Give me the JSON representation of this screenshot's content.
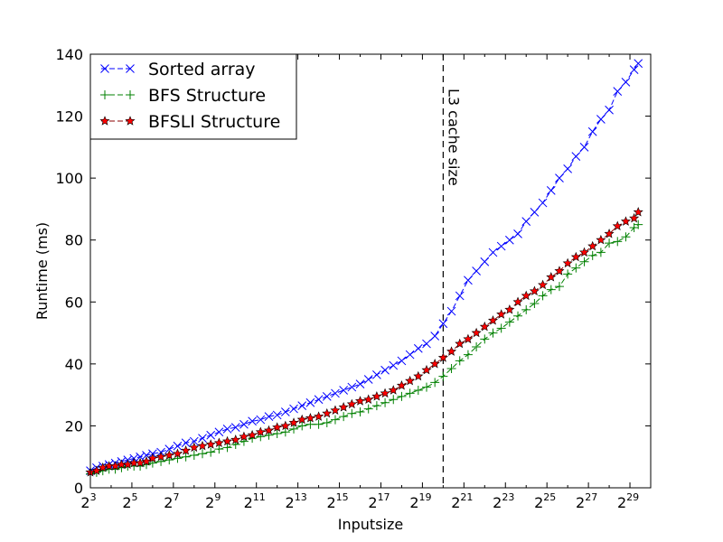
{
  "chart_data": {
    "type": "line",
    "xlabel": "Inputsize",
    "ylabel": "Runtime (ms)",
    "x_scale": "log2",
    "xlim": [
      3,
      30
    ],
    "ylim": [
      0,
      140
    ],
    "x_ticks": [
      3,
      5,
      7,
      9,
      11,
      13,
      15,
      17,
      19,
      21,
      23,
      25,
      27,
      29
    ],
    "x_tick_labels": [
      "2^3",
      "2^5",
      "2^7",
      "2^9",
      "2^11",
      "2^13",
      "2^15",
      "2^17",
      "2^19",
      "2^21",
      "2^23",
      "2^25",
      "2^27",
      "2^29"
    ],
    "y_ticks": [
      0,
      20,
      40,
      60,
      80,
      100,
      120,
      140
    ],
    "legend_position": "top-left",
    "grid": false,
    "annotation": {
      "text": "L3 cache size",
      "x": 20
    },
    "series": [
      {
        "name": "Sorted array",
        "color": "#0000ff",
        "marker": "x",
        "linestyle": "dashed",
        "points": [
          [
            3,
            5.5
          ],
          [
            3.3,
            6.5
          ],
          [
            3.6,
            7
          ],
          [
            3.9,
            7.5
          ],
          [
            4.2,
            8
          ],
          [
            4.5,
            8.5
          ],
          [
            4.8,
            9
          ],
          [
            5.1,
            9.5
          ],
          [
            5.4,
            10
          ],
          [
            5.7,
            10.5
          ],
          [
            6,
            11
          ],
          [
            6.4,
            11.5
          ],
          [
            6.8,
            12.5
          ],
          [
            7.2,
            13.5
          ],
          [
            7.6,
            14.5
          ],
          [
            8,
            15
          ],
          [
            8.4,
            16
          ],
          [
            8.8,
            17
          ],
          [
            9.2,
            18
          ],
          [
            9.6,
            19
          ],
          [
            10,
            19.5
          ],
          [
            10.4,
            20.5
          ],
          [
            10.8,
            21.5
          ],
          [
            11.2,
            22
          ],
          [
            11.6,
            23
          ],
          [
            12,
            23.5
          ],
          [
            12.4,
            24.5
          ],
          [
            12.8,
            25.5
          ],
          [
            13.2,
            26.5
          ],
          [
            13.6,
            27.5
          ],
          [
            14,
            28.5
          ],
          [
            14.4,
            29.5
          ],
          [
            14.8,
            30.5
          ],
          [
            15.2,
            31.5
          ],
          [
            15.6,
            32.5
          ],
          [
            16,
            33.5
          ],
          [
            16.4,
            35
          ],
          [
            16.8,
            36.5
          ],
          [
            17.2,
            38
          ],
          [
            17.6,
            39.5
          ],
          [
            18,
            41
          ],
          [
            18.4,
            43
          ],
          [
            18.8,
            45
          ],
          [
            19.2,
            46.5
          ],
          [
            19.6,
            49
          ],
          [
            20,
            53
          ],
          [
            20.4,
            57
          ],
          [
            20.8,
            62
          ],
          [
            21.2,
            67
          ],
          [
            21.6,
            70
          ],
          [
            22,
            73
          ],
          [
            22.4,
            76
          ],
          [
            22.8,
            78
          ],
          [
            23.2,
            80
          ],
          [
            23.6,
            82
          ],
          [
            24,
            86
          ],
          [
            24.4,
            89
          ],
          [
            24.8,
            92
          ],
          [
            25.2,
            96
          ],
          [
            25.6,
            100
          ],
          [
            26,
            103
          ],
          [
            26.4,
            107
          ],
          [
            26.8,
            110
          ],
          [
            27.2,
            115
          ],
          [
            27.6,
            119
          ],
          [
            28,
            122
          ],
          [
            28.4,
            128
          ],
          [
            28.8,
            131
          ],
          [
            29.2,
            135
          ],
          [
            29.4,
            137
          ]
        ]
      },
      {
        "name": "BFS Structure",
        "color": "#008000",
        "marker": "+",
        "linestyle": "dashed",
        "points": [
          [
            3,
            4.5
          ],
          [
            3.3,
            5
          ],
          [
            3.6,
            5.5
          ],
          [
            3.9,
            6
          ],
          [
            4.2,
            6
          ],
          [
            4.5,
            6.5
          ],
          [
            4.8,
            7
          ],
          [
            5.1,
            7
          ],
          [
            5.4,
            7
          ],
          [
            5.7,
            7.5
          ],
          [
            6,
            8
          ],
          [
            6.4,
            8.5
          ],
          [
            6.8,
            9
          ],
          [
            7.2,
            9.5
          ],
          [
            7.6,
            10
          ],
          [
            8,
            10.5
          ],
          [
            8.4,
            11
          ],
          [
            8.8,
            11.5
          ],
          [
            9.2,
            12.5
          ],
          [
            9.6,
            13
          ],
          [
            10,
            14
          ],
          [
            10.4,
            15
          ],
          [
            10.8,
            16
          ],
          [
            11.2,
            16.5
          ],
          [
            11.6,
            17
          ],
          [
            12,
            17.5
          ],
          [
            12.4,
            18
          ],
          [
            12.8,
            19
          ],
          [
            13.2,
            20
          ],
          [
            13.6,
            20.5
          ],
          [
            14,
            20.5
          ],
          [
            14.4,
            21
          ],
          [
            14.8,
            22
          ],
          [
            15.2,
            23
          ],
          [
            15.6,
            24
          ],
          [
            16,
            24.5
          ],
          [
            16.4,
            25.5
          ],
          [
            16.8,
            26.5
          ],
          [
            17.2,
            27.5
          ],
          [
            17.6,
            28.5
          ],
          [
            18,
            29.5
          ],
          [
            18.4,
            30.5
          ],
          [
            18.8,
            31.5
          ],
          [
            19.2,
            32.5
          ],
          [
            19.6,
            34
          ],
          [
            20,
            36
          ],
          [
            20.4,
            38.5
          ],
          [
            20.8,
            41
          ],
          [
            21.2,
            43
          ],
          [
            21.6,
            45.5
          ],
          [
            22,
            48
          ],
          [
            22.4,
            50
          ],
          [
            22.8,
            51.5
          ],
          [
            23.2,
            53.5
          ],
          [
            23.6,
            55.5
          ],
          [
            24,
            57.5
          ],
          [
            24.4,
            59.5
          ],
          [
            24.8,
            62
          ],
          [
            25.2,
            64
          ],
          [
            25.6,
            65
          ],
          [
            26,
            69
          ],
          [
            26.4,
            71
          ],
          [
            26.8,
            73
          ],
          [
            27.2,
            75
          ],
          [
            27.6,
            76
          ],
          [
            28,
            79
          ],
          [
            28.4,
            79.5
          ],
          [
            28.8,
            81
          ],
          [
            29.2,
            84
          ],
          [
            29.4,
            85
          ]
        ]
      },
      {
        "name": "BFSLI Structure",
        "color": "#8b0000",
        "marker_fill": "#ff0000",
        "marker": "*",
        "linestyle": "dashed",
        "points": [
          [
            3,
            5
          ],
          [
            3.3,
            5.5
          ],
          [
            3.6,
            6.5
          ],
          [
            3.9,
            7
          ],
          [
            4.2,
            7
          ],
          [
            4.5,
            7.5
          ],
          [
            4.8,
            7.5
          ],
          [
            5.1,
            8
          ],
          [
            5.4,
            8
          ],
          [
            5.7,
            8.5
          ],
          [
            6,
            9.5
          ],
          [
            6.4,
            10
          ],
          [
            6.8,
            10.5
          ],
          [
            7.2,
            11
          ],
          [
            7.6,
            12
          ],
          [
            8,
            13
          ],
          [
            8.4,
            13.5
          ],
          [
            8.8,
            14
          ],
          [
            9.2,
            14.5
          ],
          [
            9.6,
            15
          ],
          [
            10,
            15.5
          ],
          [
            10.4,
            16.5
          ],
          [
            10.8,
            17
          ],
          [
            11.2,
            18
          ],
          [
            11.6,
            18.5
          ],
          [
            12,
            19.5
          ],
          [
            12.4,
            20
          ],
          [
            12.8,
            21
          ],
          [
            13.2,
            22
          ],
          [
            13.6,
            22.5
          ],
          [
            14,
            23
          ],
          [
            14.4,
            24
          ],
          [
            14.8,
            25
          ],
          [
            15.2,
            26
          ],
          [
            15.6,
            27
          ],
          [
            16,
            28
          ],
          [
            16.4,
            28.5
          ],
          [
            16.8,
            29.5
          ],
          [
            17.2,
            30.5
          ],
          [
            17.6,
            31.5
          ],
          [
            18,
            33
          ],
          [
            18.4,
            34.5
          ],
          [
            18.8,
            36
          ],
          [
            19.2,
            38
          ],
          [
            19.6,
            40
          ],
          [
            20,
            42
          ],
          [
            20.4,
            44
          ],
          [
            20.8,
            46.5
          ],
          [
            21.2,
            48
          ],
          [
            21.6,
            50
          ],
          [
            22,
            52
          ],
          [
            22.4,
            54
          ],
          [
            22.8,
            56
          ],
          [
            23.2,
            57.5
          ],
          [
            23.6,
            60
          ],
          [
            24,
            62
          ],
          [
            24.4,
            63.5
          ],
          [
            24.8,
            65.5
          ],
          [
            25.2,
            68
          ],
          [
            25.6,
            70
          ],
          [
            26,
            72.5
          ],
          [
            26.4,
            74.5
          ],
          [
            26.8,
            76
          ],
          [
            27.2,
            78
          ],
          [
            27.6,
            80
          ],
          [
            28,
            82
          ],
          [
            28.4,
            84.5
          ],
          [
            28.8,
            86
          ],
          [
            29.2,
            87
          ],
          [
            29.4,
            89
          ]
        ]
      }
    ]
  }
}
